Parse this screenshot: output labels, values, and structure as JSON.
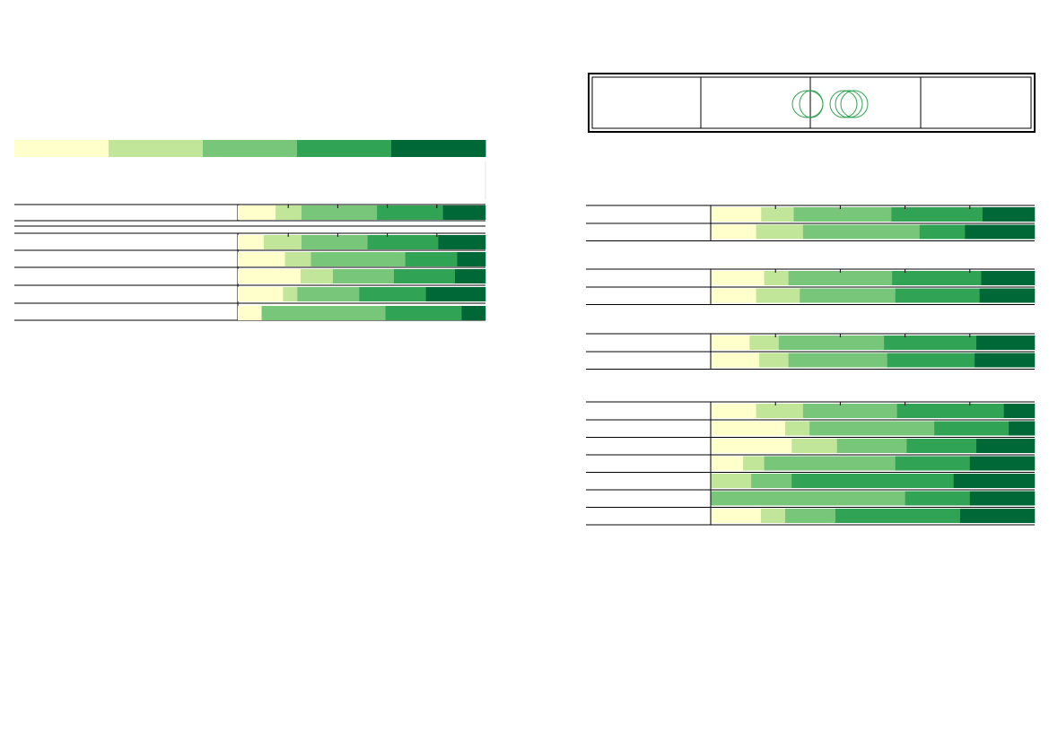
{
  "colors": {
    "scale": [
      "#ffffcc",
      "#c2e699",
      "#78c679",
      "#31a354",
      "#006837"
    ],
    "frame": "#000000",
    "logo": "#31a354",
    "grid": "#000000"
  },
  "legend": {
    "categories": [
      "",
      "",
      "",
      "",
      ""
    ]
  },
  "chart_data": [
    {
      "type": "bar",
      "orientation": "horizontal",
      "stacked": true,
      "normalized": true,
      "xlim": [
        0,
        100
      ],
      "title": "",
      "xlabel": "",
      "ylabel": "",
      "categories": [
        "",
        "",
        "",
        "",
        "",
        "",
        ""
      ],
      "rows": [
        {
          "label": "",
          "segments": [
            8,
            5.5,
            16,
            14,
            9
          ]
        },
        {
          "label": "",
          "segments": null
        },
        {
          "label": "",
          "segments": [
            5.5,
            8,
            14,
            15,
            10
          ]
        },
        {
          "label": "",
          "segments": [
            10,
            5.5,
            20,
            11,
            6
          ]
        },
        {
          "label": "",
          "segments": [
            17.5,
            9,
            17,
            17,
            8.5
          ]
        },
        {
          "label": "",
          "segments": [
            9.5,
            3,
            13,
            14,
            12.5
          ]
        },
        {
          "label": "",
          "segments": [
            5,
            0,
            26,
            16,
            5
          ]
        }
      ]
    },
    {
      "type": "bar",
      "orientation": "horizontal",
      "stacked": true,
      "normalized": true,
      "xlim": [
        0,
        100
      ],
      "title": "",
      "xlabel": "",
      "ylabel": "",
      "groups": [
        {
          "label": "",
          "rows": [
            {
              "label": "",
              "segments": [
                15.5,
                10,
                30,
                28,
                16
              ]
            },
            {
              "label": "",
              "segments": [
                14,
                14.5,
                36,
                14,
                21.5
              ]
            }
          ]
        },
        {
          "label": "",
          "rows": [
            {
              "label": "",
              "segments": [
                16.5,
                7.5,
                32,
                27.5,
                16.5
              ]
            },
            {
              "label": "",
              "segments": [
                14,
                13.5,
                29.5,
                26,
                17
              ]
            }
          ]
        },
        {
          "label": "",
          "rows": [
            {
              "label": "",
              "segments": [
                12,
                9,
                32.5,
                28.5,
                18
              ]
            },
            {
              "label": "",
              "segments": [
                15,
                9,
                30.5,
                27,
                18.5
              ]
            }
          ]
        },
        {
          "label": "",
          "rows": [
            {
              "label": "",
              "segments": [
                14,
                14.5,
                29,
                33,
                9.5
              ]
            },
            {
              "label": "",
              "segments": [
                23,
                7.5,
                38.5,
                23,
                8
              ]
            },
            {
              "label": "",
              "segments": [
                25,
                14,
                21.5,
                21.5,
                18
              ]
            },
            {
              "label": "",
              "segments": [
                10,
                6.5,
                40.5,
                23,
                20
              ]
            },
            {
              "label": "",
              "segments": [
                0,
                12.5,
                12.5,
                50,
                25
              ]
            },
            {
              "label": "",
              "segments": [
                0,
                0,
                60,
                20,
                20
              ]
            },
            {
              "label": "",
              "segments": [
                15.5,
                7.5,
                15.5,
                38.5,
                23
              ]
            }
          ]
        }
      ]
    }
  ],
  "header_box": {
    "cells": [
      "",
      "",
      "",
      ""
    ]
  }
}
